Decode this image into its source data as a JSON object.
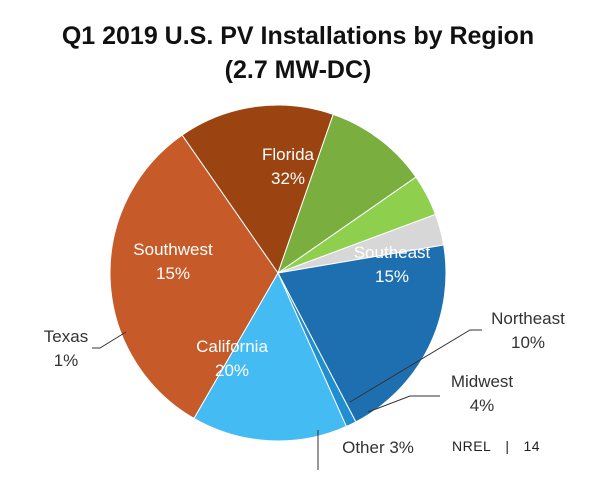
{
  "chart_data": {
    "type": "pie",
    "title_line1": "Q1 2019 U.S. PV Installations by Region",
    "title_line2": "(2.7 MW-DC)",
    "slices": [
      {
        "name": "Florida",
        "value": 32,
        "label": "32%",
        "color": "#C65A28",
        "text_color": "#ffffff"
      },
      {
        "name": "Southeast",
        "value": 15,
        "label": "15%",
        "color": "#9B4412",
        "text_color": "#ffffff"
      },
      {
        "name": "Northeast",
        "value": 10,
        "label": "10%",
        "color": "#7AAE3E",
        "text_color": "#333333"
      },
      {
        "name": "Midwest",
        "value": 4,
        "label": "4%",
        "color": "#8ED04E",
        "text_color": "#333333"
      },
      {
        "name": "Other",
        "value": 3,
        "label": "Other 3%",
        "color": "#D7D7D7",
        "text_color": "#333333"
      },
      {
        "name": "California",
        "value": 20,
        "label": "20%",
        "color": "#1E6FB0",
        "text_color": "#ffffff"
      },
      {
        "name": "Texas",
        "value": 1,
        "label": "1%",
        "color": "#1F8FD0",
        "text_color": "#333333"
      },
      {
        "name": "Southwest",
        "value": 15,
        "label": "15%",
        "color": "#45BBF3",
        "text_color": "#ffffff"
      }
    ]
  },
  "footer": {
    "source": "NREL",
    "separator": "|",
    "page_number": "14"
  }
}
